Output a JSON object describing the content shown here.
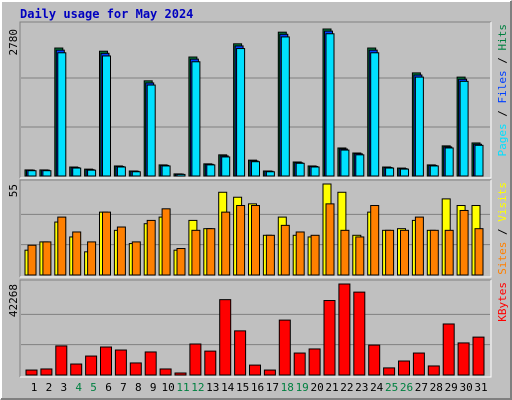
{
  "chart_data": [
    {
      "type": "bar",
      "title": "Daily usage for May 2024",
      "legend_separator": " / ",
      "ylim": [
        0,
        2780
      ],
      "yticks": [
        2780
      ],
      "series": [
        {
          "name": "Hits",
          "color": "#008040",
          "values": [
            115,
            115,
            2420,
            170,
            130,
            2360,
            190,
            95,
            1800,
            210,
            40,
            2250,
            230,
            400,
            2500,
            300,
            95,
            2720,
            265,
            190,
            2780,
            530,
            435,
            2420,
            170,
            150,
            1950,
            210,
            570,
            1870,
            625
          ]
        },
        {
          "name": "Files",
          "color": "#0040ff",
          "values": [
            110,
            110,
            2380,
            160,
            120,
            2320,
            180,
            90,
            1760,
            200,
            35,
            2210,
            220,
            380,
            2460,
            285,
            90,
            2680,
            250,
            180,
            2740,
            510,
            420,
            2380,
            160,
            140,
            1910,
            200,
            550,
            1830,
            600
          ]
        },
        {
          "name": "Pages",
          "color": "#00e0ff",
          "values": [
            100,
            100,
            2330,
            150,
            110,
            2270,
            170,
            80,
            1720,
            190,
            30,
            2160,
            210,
            360,
            2410,
            270,
            80,
            2630,
            240,
            170,
            2690,
            490,
            400,
            2330,
            150,
            130,
            1870,
            190,
            530,
            1790,
            580
          ]
        }
      ]
    },
    {
      "type": "bar",
      "legend_separator": " / ",
      "ylim": [
        0,
        55
      ],
      "yticks": [
        55
      ],
      "series": [
        {
          "name": "Visits",
          "color": "#ffff00",
          "values": [
            15,
            20,
            32,
            23,
            14,
            38,
            27,
            19,
            31,
            35,
            15,
            33,
            28,
            50,
            47,
            43,
            24,
            35,
            24,
            23,
            55,
            50,
            24,
            38,
            27,
            28,
            33,
            27,
            46,
            42,
            42
          ]
        },
        {
          "name": "Sites",
          "color": "#ff8000",
          "values": [
            18,
            20,
            35,
            26,
            20,
            38,
            29,
            20,
            33,
            40,
            16,
            27,
            28,
            38,
            42,
            42,
            24,
            30,
            26,
            24,
            43,
            27,
            23,
            42,
            27,
            27,
            35,
            27,
            27,
            39,
            28
          ]
        }
      ]
    },
    {
      "type": "bar",
      "ylim": [
        0,
        42268
      ],
      "yticks": [
        42268
      ],
      "categories": [
        "1",
        "2",
        "3",
        "4",
        "5",
        "6",
        "7",
        "8",
        "9",
        "10",
        "11",
        "12",
        "13",
        "14",
        "15",
        "16",
        "17",
        "18",
        "19",
        "20",
        "21",
        "22",
        "23",
        "24",
        "25",
        "26",
        "27",
        "28",
        "29",
        "30",
        "31"
      ],
      "category_colors": [
        "#000000",
        "#000000",
        "#000000",
        "#008040",
        "#008040",
        "#000000",
        "#000000",
        "#000000",
        "#000000",
        "#000000",
        "#008040",
        "#008040",
        "#000000",
        "#000000",
        "#000000",
        "#000000",
        "#000000",
        "#008040",
        "#008040",
        "#000000",
        "#000000",
        "#000000",
        "#000000",
        "#000000",
        "#008040",
        "#008040",
        "#000000",
        "#000000",
        "#000000",
        "#000000",
        "#000000"
      ],
      "series": [
        {
          "name": "KBytes",
          "color": "#ff0000",
          "values": [
            2300,
            2800,
            13500,
            5100,
            8800,
            13000,
            11600,
            5600,
            10700,
            2800,
            930,
            14400,
            11100,
            35000,
            20500,
            4600,
            2300,
            25500,
            10200,
            12100,
            34600,
            42268,
            38500,
            13900,
            3300,
            6500,
            10200,
            4200,
            23700,
            14900,
            17600
          ]
        }
      ]
    }
  ]
}
